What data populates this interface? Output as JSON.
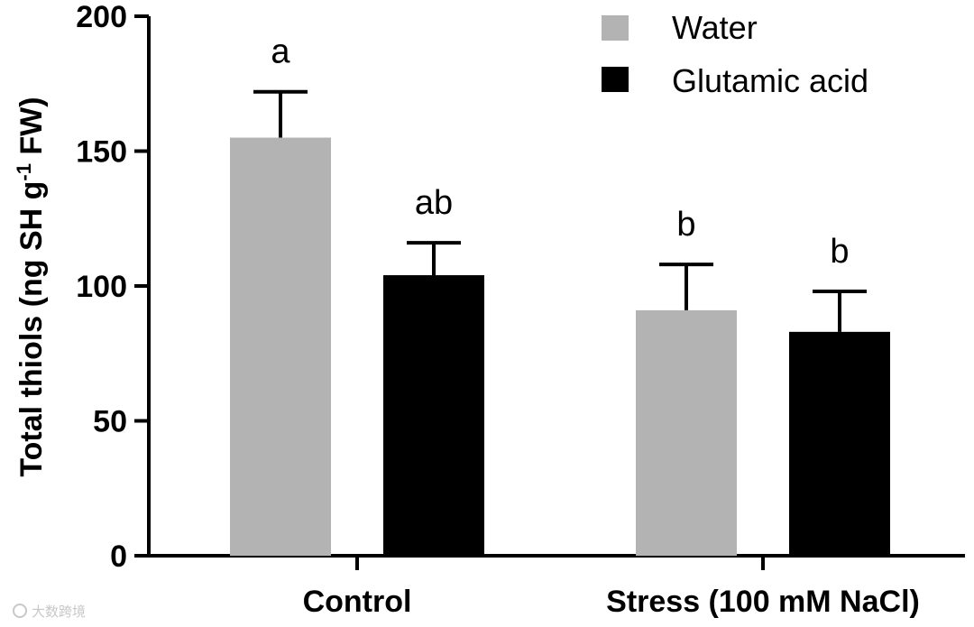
{
  "chart_data": {
    "type": "bar",
    "title": "",
    "xlabel": "",
    "ylabel": {
      "prefix": "Total thiols (ng  SH g",
      "superscript": "-1",
      "suffix": " FW)"
    },
    "ylim": [
      0,
      200
    ],
    "yticks": [
      "0",
      "50",
      "100",
      "150",
      "200"
    ],
    "categories": [
      "Control",
      "Stress (100 mM NaCl)"
    ],
    "series": [
      {
        "name": "Water",
        "color": "#b3b3b3",
        "values": [
          155,
          91
        ],
        "errors": [
          17,
          17
        ],
        "letters": [
          "a",
          "b"
        ]
      },
      {
        "name": "Glutamic acid",
        "color": "#000000",
        "values": [
          104,
          83
        ],
        "errors": [
          12,
          15
        ],
        "letters": [
          "ab",
          "b"
        ]
      }
    ],
    "legend_position": "top-right",
    "grid": false
  },
  "watermark": "大数跨境"
}
